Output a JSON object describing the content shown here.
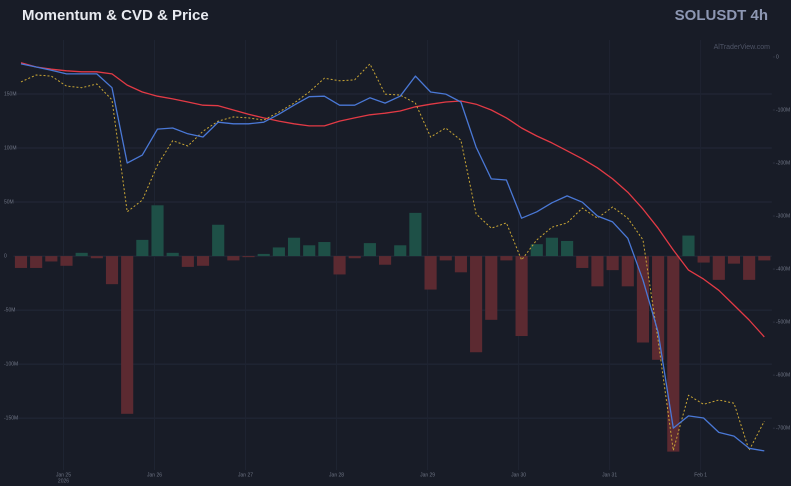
{
  "chart_data": {
    "type": "combo",
    "title": "Momentum & CVD & Price",
    "symbol": "SOLUSDT 4h",
    "watermark": "AlTraderView.com",
    "categories": [
      null,
      null,
      null,
      "Jan 25",
      null,
      null,
      null,
      null,
      null,
      "Jan 26",
      null,
      null,
      null,
      null,
      null,
      "Jan 27",
      null,
      null,
      null,
      null,
      null,
      "Jan 28",
      null,
      null,
      null,
      null,
      null,
      "Jan 29",
      null,
      null,
      null,
      null,
      null,
      "Jan 30",
      null,
      null,
      null,
      null,
      null,
      "Jan 31",
      null,
      null,
      null,
      null,
      null,
      "Feb 1",
      null,
      null,
      null,
      null
    ],
    "year_label": "2026",
    "ylim": [
      -198,
      200
    ],
    "yticks": [
      {
        "value": 150,
        "label": "150M"
      },
      {
        "value": 100,
        "label": "100M"
      },
      {
        "value": 50,
        "label": "50M"
      },
      0,
      {
        "value": -50,
        "label": "-50M"
      },
      {
        "value": -100,
        "label": "-100M"
      },
      {
        "value": -150,
        "label": "-150M"
      }
    ],
    "y2lim": [
      -779,
      32
    ],
    "y2ticks": [
      0,
      {
        "value": -100,
        "label": "-100M"
      },
      {
        "value": -200,
        "label": "-200M"
      },
      {
        "value": -300,
        "label": "-300M"
      },
      {
        "value": -400,
        "label": "-400M"
      },
      {
        "value": -500,
        "label": "-500M"
      },
      {
        "value": -600,
        "label": "-600M"
      },
      {
        "value": -700,
        "label": "-700M"
      }
    ],
    "grid": true,
    "series": [
      {
        "type": "bar",
        "axis": "y",
        "positive_color": "#1e5047",
        "negative_color": "#5c2a31",
        "values": [
          -11,
          -11,
          -5,
          -9,
          3,
          -2,
          -26,
          -146,
          15,
          47,
          3,
          -10,
          -9,
          29,
          -4,
          -1,
          2,
          8,
          17,
          10,
          13,
          -17,
          -2,
          12,
          -8,
          10,
          40,
          -31,
          -4,
          -15,
          -89,
          -59,
          -4,
          -74,
          11,
          17,
          14,
          -11,
          -28,
          -13,
          -28,
          -80,
          -96,
          -181,
          19,
          -6,
          -22,
          -7,
          -22,
          -4
        ]
      },
      {
        "type": "line",
        "axis": "y2",
        "color": "#e23a45",
        "dash": false,
        "values": [
          -11,
          -19,
          -23,
          -26,
          -28,
          -28,
          -32,
          -53,
          -66,
          -74,
          -79,
          -85,
          -91,
          -92,
          -100,
          -108,
          -115,
          -121,
          -126,
          -130,
          -130,
          -121,
          -115,
          -109,
          -106,
          -102,
          -94,
          -89,
          -85,
          -83,
          -89,
          -100,
          -115,
          -134,
          -149,
          -162,
          -177,
          -192,
          -209,
          -230,
          -255,
          -287,
          -323,
          -364,
          -402,
          -419,
          -440,
          -468,
          -496,
          -528
        ]
      },
      {
        "type": "line",
        "axis": "y2",
        "color": "#c9a635",
        "dash": true,
        "values": [
          -47,
          -34,
          -36,
          -55,
          -58,
          -51,
          -81,
          -292,
          -270,
          -204,
          -158,
          -168,
          -140,
          -121,
          -113,
          -115,
          -119,
          -104,
          -87,
          -66,
          -40,
          -45,
          -43,
          -13,
          -70,
          -72,
          -87,
          -151,
          -134,
          -157,
          -296,
          -323,
          -313,
          -383,
          -345,
          -321,
          -313,
          -285,
          -304,
          -283,
          -304,
          -345,
          -534,
          -742,
          -638,
          -655,
          -647,
          -653,
          -742,
          -687
        ]
      },
      {
        "type": "line",
        "axis": "y2",
        "color": "#4a78d6",
        "dash": false,
        "values": [
          -13,
          -19,
          -25,
          -32,
          -32,
          -32,
          -58,
          -200,
          -185,
          -136,
          -134,
          -145,
          -151,
          -123,
          -126,
          -126,
          -123,
          -108,
          -91,
          -75,
          -74,
          -91,
          -91,
          -77,
          -87,
          -74,
          -36,
          -66,
          -70,
          -85,
          -170,
          -230,
          -232,
          -304,
          -292,
          -275,
          -262,
          -274,
          -300,
          -311,
          -342,
          -421,
          -519,
          -700,
          -677,
          -681,
          -708,
          -715,
          -738,
          -743
        ]
      }
    ]
  }
}
